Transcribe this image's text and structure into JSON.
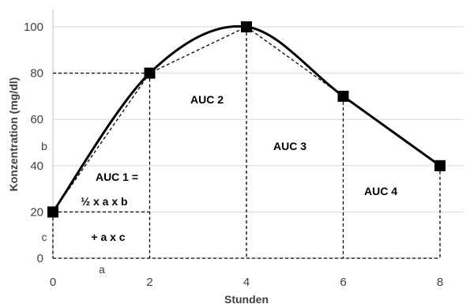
{
  "chart_data": {
    "type": "line",
    "title": "",
    "xlabel": "Stunden",
    "ylabel": "Konzentration (mg/dl)",
    "xlim": [
      0,
      8
    ],
    "ylim": [
      0,
      100
    ],
    "xticks": [
      "0",
      "2",
      "4",
      "6",
      "8"
    ],
    "yticks": [
      "0",
      "20",
      "40",
      "60",
      "80",
      "100"
    ],
    "grid": "horizontal",
    "legend": "none",
    "series": [
      {
        "x": [
          0,
          2,
          4,
          6,
          8
        ],
        "values": [
          20,
          80,
          100,
          70,
          40
        ],
        "style": "smooth-solid",
        "marker": "square",
        "color": "#000000"
      },
      {
        "x": [
          0,
          2,
          4,
          6,
          8
        ],
        "values": [
          20,
          80,
          100,
          70,
          40
        ],
        "style": "straight-dashed",
        "color": "#000000"
      }
    ],
    "annotations": {
      "auc1_line1": "AUC 1 =",
      "auc1_line2": "½ x a x b",
      "auc1_line3": "+ a x c",
      "auc2": "AUC 2",
      "auc3": "AUC 3",
      "auc4": "AUC 4",
      "label_a": "a",
      "label_b": "b",
      "label_c": "c"
    },
    "colors": {
      "grid": "#d9d9d9",
      "axis": "#bfbfbf",
      "line": "#000000"
    }
  }
}
